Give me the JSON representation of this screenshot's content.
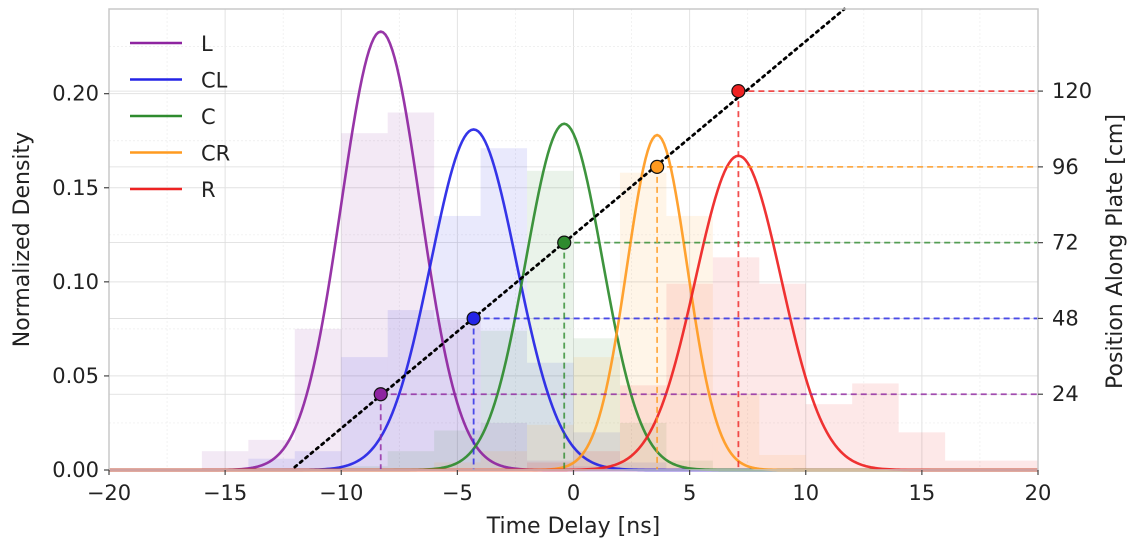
{
  "chart_data": {
    "type": "line",
    "xlabel": "Time Delay [ns]",
    "ylabel": "Normalized Density",
    "y2label": "Position Along Plate [cm]",
    "xlim": [
      -20,
      20
    ],
    "ylim": [
      0,
      0.245
    ],
    "y2lim": [
      0,
      146
    ],
    "x_ticks": [
      "−20",
      "−15",
      "−10",
      "−5",
      "0",
      "5",
      "10",
      "15",
      "20"
    ],
    "x_tick_values": [
      -20,
      -15,
      -10,
      -5,
      0,
      5,
      10,
      15,
      20
    ],
    "y_ticks": [
      "0.00",
      "0.05",
      "0.10",
      "0.15",
      "0.20"
    ],
    "y_tick_values": [
      0,
      0.05,
      0.1,
      0.15,
      0.2
    ],
    "y2_ticks": [
      "24",
      "48",
      "72",
      "96",
      "120"
    ],
    "y2_tick_values": [
      24,
      48,
      72,
      96,
      120
    ],
    "grid": true,
    "legend_position": "top-left",
    "series": [
      {
        "name": "L",
        "color": "#8e24a0",
        "mean": -8.3,
        "sigma": 1.7,
        "peak": 0.233,
        "position_cm": 24,
        "hist_edges": [
          -16,
          -14,
          -12,
          -10,
          -8,
          -6,
          -4,
          -2,
          0,
          2
        ],
        "hist_values": [
          0.01,
          0.016,
          0.075,
          0.179,
          0.19,
          0.08,
          0.025,
          0.005,
          0.002
        ]
      },
      {
        "name": "CL",
        "color": "#2424e6",
        "mean": -4.3,
        "sigma": 1.85,
        "peak": 0.181,
        "position_cm": 48,
        "hist_edges": [
          -14,
          -12,
          -10,
          -8,
          -6,
          -4,
          -2,
          0,
          2,
          4
        ],
        "hist_values": [
          0.006,
          0.01,
          0.06,
          0.085,
          0.135,
          0.171,
          0.057,
          0.02,
          0.004
        ]
      },
      {
        "name": "C",
        "color": "#2e8b2e",
        "mean": -0.4,
        "sigma": 1.65,
        "peak": 0.184,
        "position_cm": 72,
        "hist_edges": [
          -10,
          -8,
          -6,
          -4,
          -2,
          0,
          2,
          4,
          6
        ],
        "hist_values": [
          0.002,
          0.01,
          0.021,
          0.074,
          0.159,
          0.07,
          0.025,
          0.005
        ]
      },
      {
        "name": "CR",
        "color": "#ff9a1f",
        "mean": 3.6,
        "sigma": 1.3,
        "peak": 0.178,
        "position_cm": 96,
        "hist_edges": [
          -6,
          -4,
          -2,
          0,
          2,
          4,
          6,
          8,
          10
        ],
        "hist_values": [
          0.004,
          0.01,
          0.024,
          0.06,
          0.158,
          0.135,
          0.04,
          0.008
        ]
      },
      {
        "name": "R",
        "color": "#ee2222",
        "mean": 7.1,
        "sigma": 1.85,
        "peak": 0.167,
        "position_cm": 120,
        "hist_edges": [
          -2,
          0,
          2,
          4,
          6,
          8,
          10,
          12,
          14,
          16,
          20
        ],
        "hist_values": [
          0.004,
          0.01,
          0.045,
          0.099,
          0.113,
          0.099,
          0.035,
          0.046,
          0.02,
          0.005
        ]
      }
    ],
    "calibration_line": {
      "x_range": [
        -12,
        20
      ],
      "slope_cm_per_ns": 6.13,
      "intercept_cm": 74.5,
      "style": "dotted",
      "color": "#000000"
    }
  }
}
